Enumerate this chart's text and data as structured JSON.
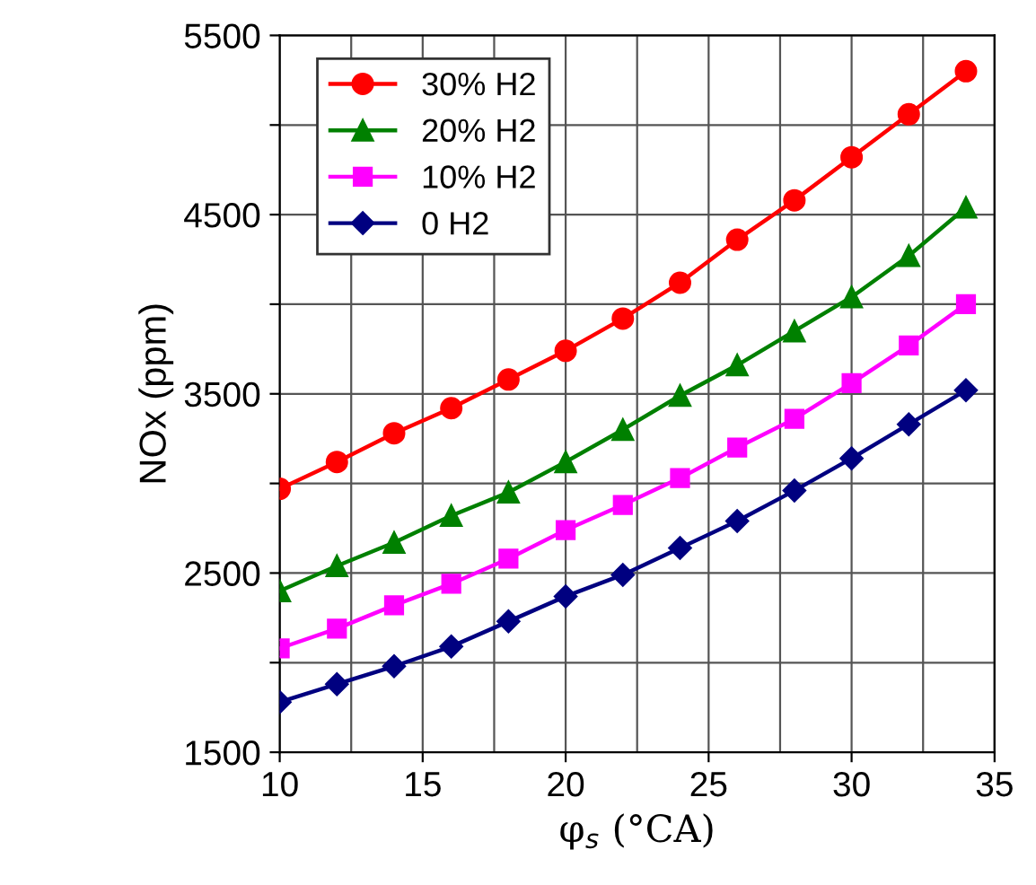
{
  "chart_data": {
    "type": "line",
    "xlabel": "φ$_{s}$ (°CA)",
    "ylabel": "NOx (ppm)",
    "x": [
      10,
      12,
      14,
      16,
      18,
      20,
      22,
      24,
      26,
      28,
      30,
      32,
      34
    ],
    "series": [
      {
        "name": "30% H2",
        "color": "#ff0000",
        "marker": "circle",
        "values": [
          2970,
          3120,
          3280,
          3420,
          3580,
          3740,
          3920,
          4120,
          4360,
          4580,
          4820,
          5060,
          5300
        ]
      },
      {
        "name": "20% H2",
        "color": "#008000",
        "marker": "triangle",
        "values": [
          2400,
          2540,
          2670,
          2820,
          2950,
          3120,
          3300,
          3490,
          3660,
          3850,
          4040,
          4270,
          4540
        ]
      },
      {
        "name": "10% H2",
        "color": "#ff00ff",
        "marker": "square",
        "values": [
          2080,
          2190,
          2320,
          2440,
          2580,
          2740,
          2880,
          3030,
          3200,
          3360,
          3560,
          3770,
          4000
        ]
      },
      {
        "name": "0 H2",
        "color": "#000080",
        "marker": "diamond",
        "values": [
          1780,
          1880,
          1980,
          2090,
          2230,
          2370,
          2490,
          2640,
          2790,
          2960,
          3140,
          3330,
          3520
        ]
      }
    ],
    "xlim": [
      10,
      35
    ],
    "ylim": [
      1500,
      5500
    ],
    "xticks": [
      10,
      {
        "value": 12.5,
        "label": null
      },
      15,
      {
        "value": 17.5,
        "label": null
      },
      20,
      {
        "value": 22.5,
        "label": null
      },
      25,
      {
        "value": 27.5,
        "label": null
      },
      30,
      {
        "value": 32.5,
        "label": null
      },
      35
    ],
    "yticks": [
      1500,
      {
        "value": 2000,
        "label": null
      },
      2500,
      {
        "value": 3000,
        "label": null
      },
      3500,
      {
        "value": 4000,
        "label": null
      },
      4500,
      {
        "value": 5000,
        "label": null
      },
      5500
    ],
    "grid": true,
    "legend": "top left",
    "line_style": "solid"
  }
}
